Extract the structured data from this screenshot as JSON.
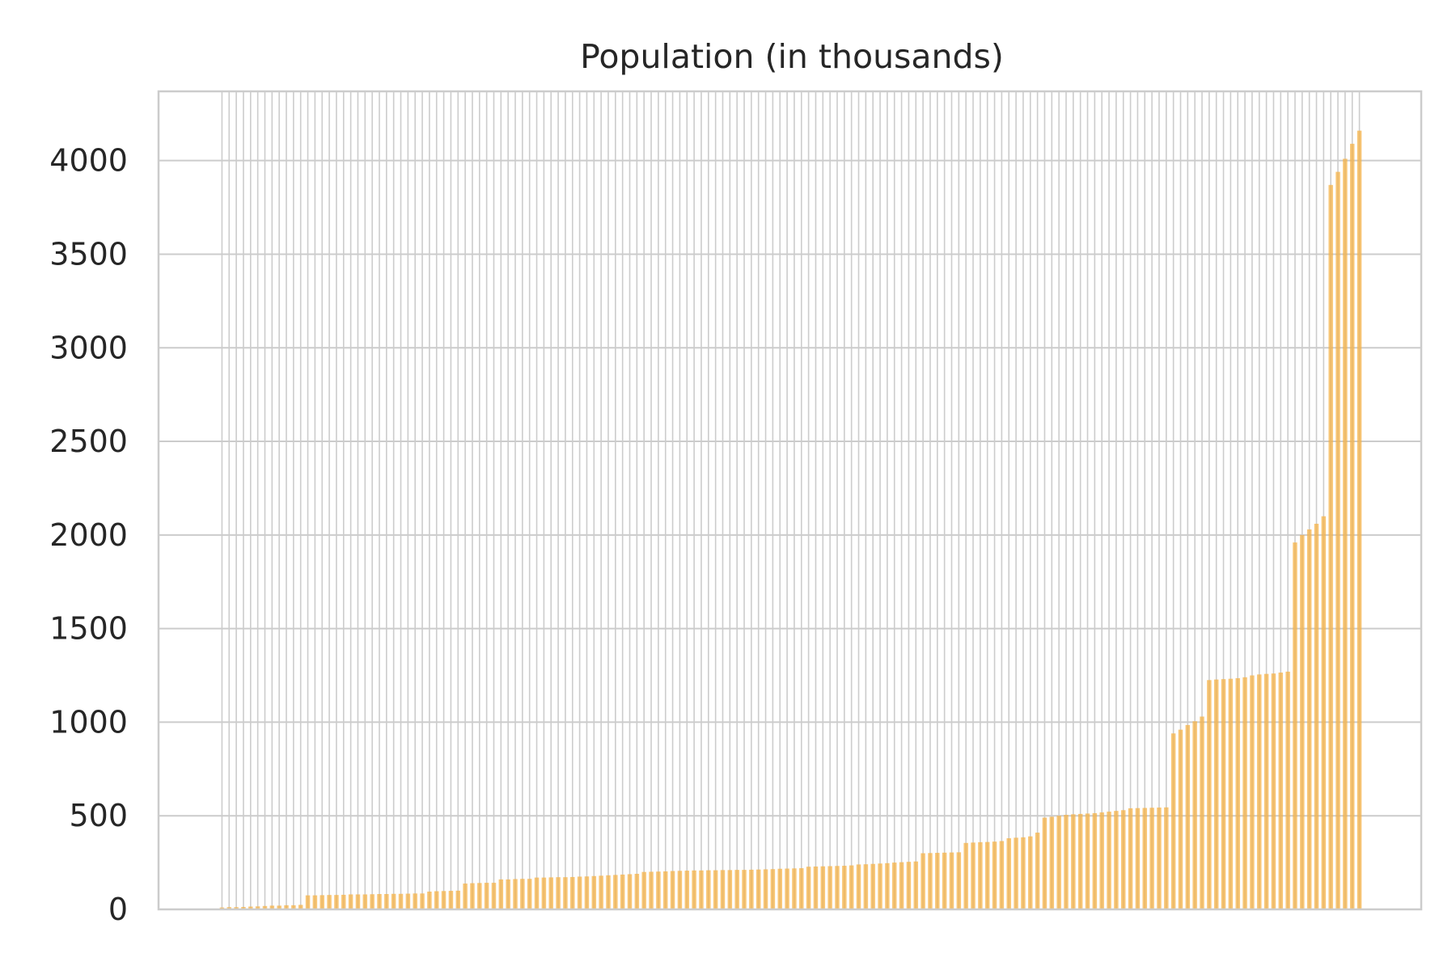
{
  "chart_data": {
    "type": "bar",
    "title": "Population (in thousands)",
    "xlabel": "",
    "ylabel": "",
    "ylim": [
      0,
      4370
    ],
    "yticks": [
      0,
      500,
      1000,
      1500,
      2000,
      2500,
      3000,
      3500,
      4000
    ],
    "grid": true,
    "bar_color": "#f5b041",
    "values": [
      10,
      12,
      12,
      13,
      15,
      16,
      18,
      20,
      20,
      22,
      22,
      24,
      75,
      75,
      76,
      77,
      77,
      78,
      80,
      80,
      80,
      81,
      82,
      82,
      83,
      83,
      84,
      85,
      85,
      95,
      97,
      98,
      99,
      100,
      138,
      140,
      141,
      142,
      142,
      160,
      160,
      162,
      163,
      163,
      170,
      170,
      171,
      172,
      172,
      173,
      175,
      176,
      178,
      180,
      182,
      184,
      186,
      188,
      190,
      200,
      201,
      202,
      203,
      205,
      206,
      207,
      208,
      208,
      209,
      209,
      210,
      210,
      211,
      211,
      212,
      213,
      214,
      215,
      217,
      218,
      219,
      220,
      228,
      229,
      230,
      231,
      232,
      233,
      235,
      240,
      241,
      243,
      245,
      247,
      250,
      252,
      254,
      256,
      300,
      301,
      302,
      303,
      304,
      305,
      355,
      357,
      359,
      360,
      362,
      365,
      380,
      383,
      385,
      390,
      410,
      490,
      495,
      500,
      505,
      508,
      510,
      512,
      514,
      518,
      522,
      526,
      530,
      540,
      541,
      542,
      543,
      544,
      545,
      940,
      960,
      985,
      1005,
      1030,
      1225,
      1228,
      1230,
      1232,
      1235,
      1240,
      1250,
      1255,
      1258,
      1260,
      1265,
      1270,
      1960,
      2000,
      2030,
      2060,
      2100,
      3870,
      3940,
      4010,
      4090,
      4160
    ]
  }
}
